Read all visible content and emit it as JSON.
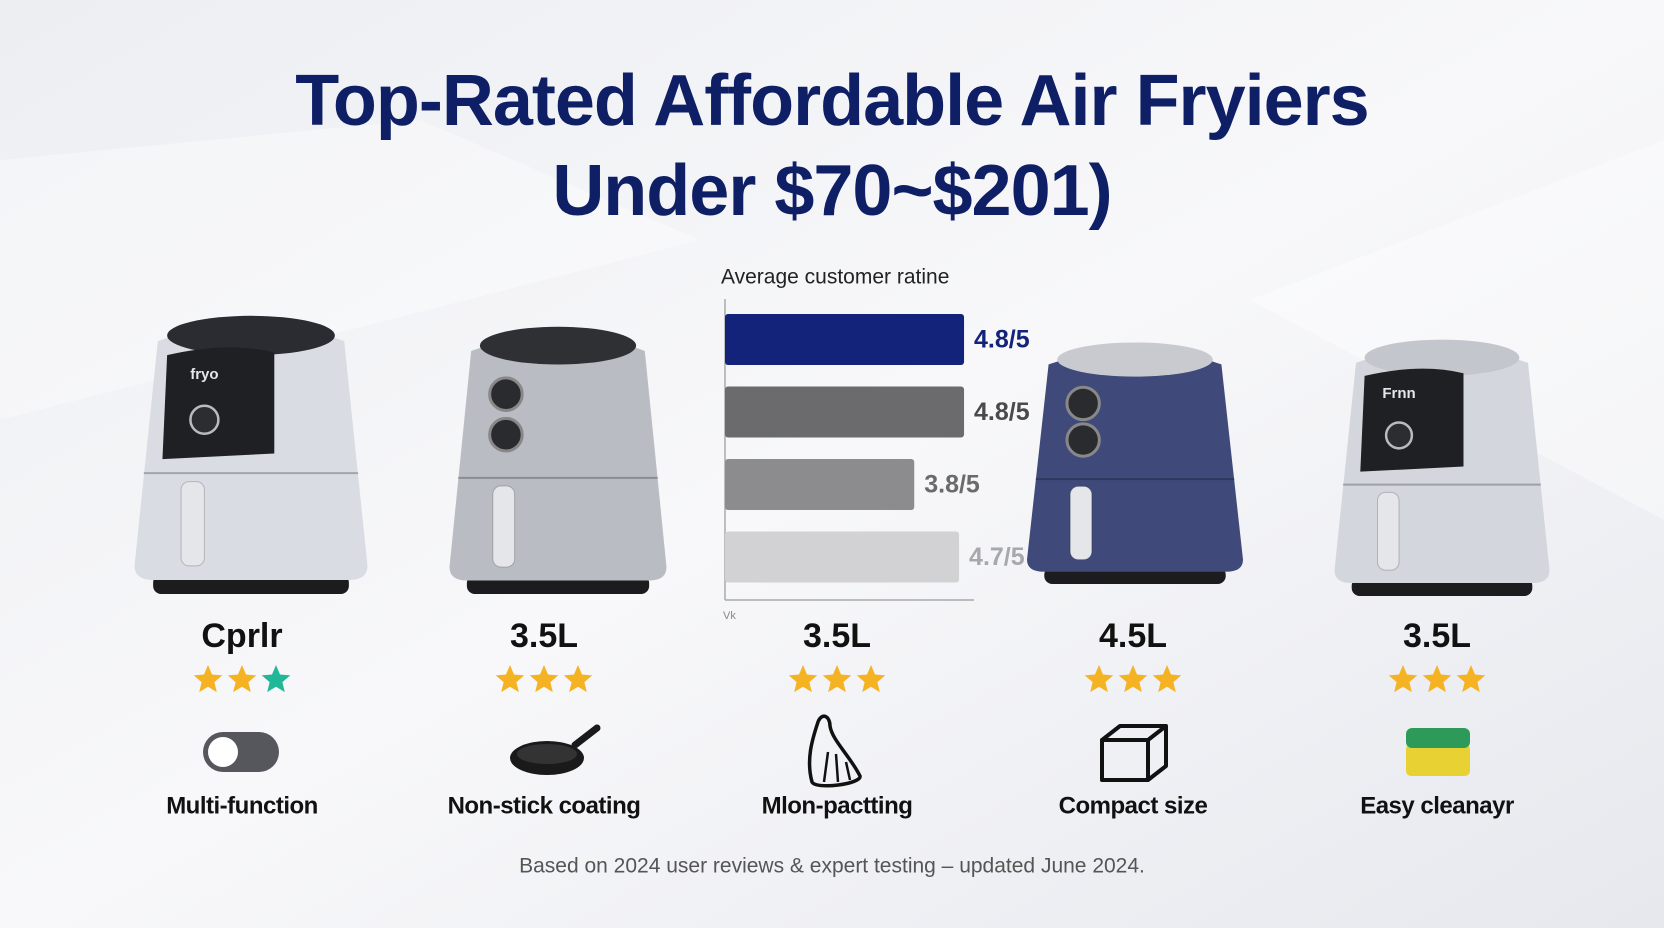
{
  "header": {
    "title_lines": [
      "Top-Rated Affordable Air Fryiers",
      "Under $70~$201)"
    ]
  },
  "chart_data": {
    "type": "bar",
    "orientation": "horizontal",
    "title": "Average customer ratine",
    "values": [
      4.8,
      4.8,
      3.8,
      4.7
    ],
    "value_labels": [
      "4.8/5",
      "4.8/5",
      "3.8/5",
      "4.7/5"
    ],
    "colors": [
      "#13237a",
      "#6b6b6d",
      "#8c8c8e",
      "#d2d2d4"
    ],
    "label_colors": [
      "#13237a",
      "#4a4a4c",
      "#6a6a6c",
      "#a8a8aa"
    ],
    "xlim": [
      0,
      5
    ],
    "x_label": "Vk"
  },
  "products": [
    {
      "capacity": "Cprlr",
      "feature": "Multi-function",
      "brand": "fryo"
    },
    {
      "capacity": "3.5L",
      "feature": "Non-stick coating"
    },
    {
      "capacity": "3.5L",
      "feature": "Mlon-pactting"
    },
    {
      "capacity": "4.5L",
      "feature": "Compact size"
    },
    {
      "capacity": "3.5L",
      "feature": "Easy cleanayr",
      "brand": "Frnn"
    }
  ],
  "footnote": "Based on 2024 user reviews & expert testing – updated June 2024."
}
